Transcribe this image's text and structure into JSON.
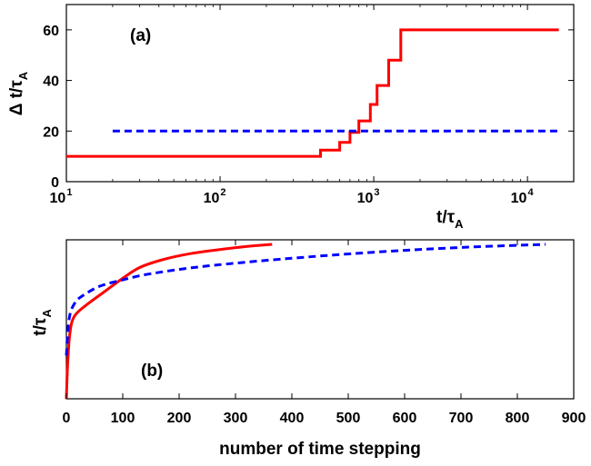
{
  "chart_data": [
    {
      "type": "line",
      "panel_label": "(a)",
      "xlabel": "t/τ_A",
      "ylabel": "Δ t/τ_A",
      "x_scale": "log",
      "xlim": [
        10,
        20000
      ],
      "ylim": [
        0,
        70
      ],
      "x_tick_labels": [
        "10^1",
        "10^2",
        "10^3",
        "10^4"
      ],
      "y_tick_labels": [
        "0",
        "20",
        "40",
        "60"
      ],
      "grid": false,
      "series": [
        {
          "color": "#ff0000",
          "style": "solid",
          "x": [
            10,
            450,
            450,
            600,
            600,
            700,
            700,
            800,
            800,
            950,
            950,
            1050,
            1050,
            1250,
            1250,
            1500,
            1500,
            1800,
            1800,
            2200,
            2200,
            2600,
            2600,
            16000
          ],
          "y": [
            10,
            10,
            12.5,
            12.5,
            15.5,
            15.5,
            19.5,
            19.5,
            24,
            24,
            30.5,
            30.5,
            38,
            38,
            48,
            48,
            60,
            60,
            60,
            60,
            60,
            60,
            60,
            60
          ]
        },
        {
          "color": "#0000ff",
          "style": "dashed",
          "x": [
            20,
            16000
          ],
          "y": [
            20,
            20
          ]
        }
      ]
    },
    {
      "type": "line",
      "panel_label": "(b)",
      "xlabel": "number of time stepping",
      "ylabel": "t/τ_A",
      "xlim": [
        0,
        900
      ],
      "x_tick_labels": [
        "0",
        "100",
        "200",
        "300",
        "400",
        "500",
        "600",
        "700",
        "800",
        "900"
      ],
      "y_tick_labels": [],
      "grid": false,
      "series": [
        {
          "color": "#ff0000",
          "style": "solid",
          "x": [
            0,
            2,
            5,
            10,
            20,
            40,
            70,
            100,
            130,
            170,
            220,
            280,
            330,
            365
          ],
          "y": [
            0,
            0.2,
            0.38,
            0.5,
            0.56,
            0.62,
            0.7,
            0.78,
            0.85,
            0.9,
            0.94,
            0.97,
            0.99,
            1.0
          ]
        },
        {
          "color": "#0000ff",
          "style": "dashed",
          "x": [
            0,
            5,
            15,
            30,
            60,
            100,
            150,
            250,
            400,
            550,
            700,
            850
          ],
          "y": [
            0.28,
            0.52,
            0.62,
            0.67,
            0.73,
            0.77,
            0.81,
            0.86,
            0.91,
            0.95,
            0.98,
            1.0
          ]
        }
      ]
    }
  ]
}
